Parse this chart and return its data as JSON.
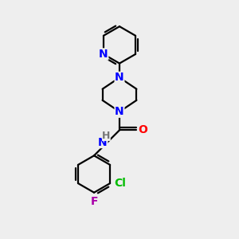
{
  "background_color": "#eeeeee",
  "bond_color": "#000000",
  "N_color": "#0000ff",
  "O_color": "#ff0000",
  "Cl_color": "#00bb00",
  "F_color": "#aa00aa",
  "H_color": "#777777",
  "line_width": 1.6,
  "font_size": 10,
  "figsize": [
    3.0,
    3.0
  ],
  "dpi": 100,
  "xlim": [
    0,
    10
  ],
  "ylim": [
    0,
    10
  ]
}
